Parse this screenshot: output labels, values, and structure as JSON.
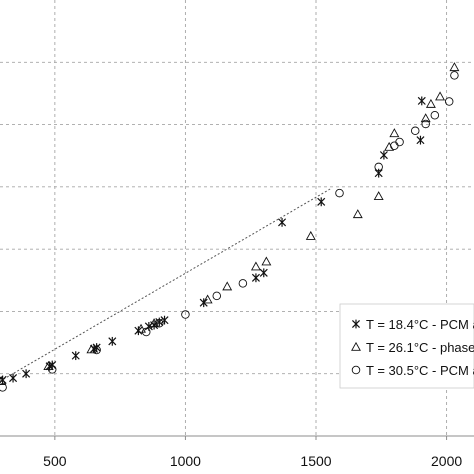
{
  "chart_data": {
    "type": "scatter",
    "panel_label": "",
    "xlabel": "",
    "ylabel": "",
    "xlim": [
      290,
      2105
    ],
    "ylim": [
      0,
      7
    ],
    "x_ticks": [
      500,
      1000,
      1500,
      2000
    ],
    "x_tick_labels": [
      "500",
      "1000",
      "1500",
      "2000"
    ],
    "y_gridlines": [
      1,
      2,
      3,
      4,
      5,
      6
    ],
    "grid": true,
    "grid_style": "dashed",
    "legend_position": "bottom-right",
    "colors": {
      "marker": "#111111",
      "grid": "#a6a6a6",
      "fit_line": "#555555"
    },
    "fit_line": {
      "style": "dotted",
      "x": [
        290,
        1560
      ],
      "y": [
        0.88,
        3.98
      ]
    },
    "series": [
      {
        "name": "T = 18.4°C  - PCM a",
        "marker": "star",
        "x": [
          300,
          340,
          390,
          480,
          490,
          580,
          650,
          660,
          720,
          820,
          860,
          880,
          900,
          920,
          1070,
          1270,
          1300,
          1370,
          1520,
          1740,
          1760,
          1900,
          1905
        ],
        "y": [
          0.9,
          0.93,
          1.0,
          1.12,
          1.14,
          1.29,
          1.4,
          1.42,
          1.52,
          1.69,
          1.76,
          1.78,
          1.83,
          1.86,
          2.14,
          2.54,
          2.62,
          3.43,
          3.76,
          4.22,
          4.51,
          4.75,
          5.38
        ]
      },
      {
        "name": "T = 26.1°C  - phase",
        "marker": "triangle",
        "x": [
          295,
          475,
          640,
          830,
          880,
          1085,
          1160,
          1270,
          1310,
          1480,
          1660,
          1740,
          1780,
          1800,
          1920,
          1940,
          1975,
          2030
        ],
        "y": [
          0.88,
          1.12,
          1.39,
          1.72,
          1.81,
          2.19,
          2.4,
          2.72,
          2.8,
          3.21,
          3.56,
          3.85,
          4.64,
          4.86,
          5.1,
          5.33,
          5.45,
          5.92
        ]
      },
      {
        "name": "T = 30.5°C  - PCM a",
        "marker": "circle",
        "x": [
          300,
          490,
          660,
          850,
          900,
          1000,
          1120,
          1220,
          1590,
          1740,
          1800,
          1820,
          1880,
          1920,
          1955,
          2010,
          2030
        ],
        "y": [
          0.78,
          1.07,
          1.38,
          1.67,
          1.81,
          1.95,
          2.25,
          2.45,
          3.9,
          4.32,
          4.66,
          4.72,
          4.9,
          5.01,
          5.15,
          5.37,
          5.79
        ]
      }
    ]
  }
}
